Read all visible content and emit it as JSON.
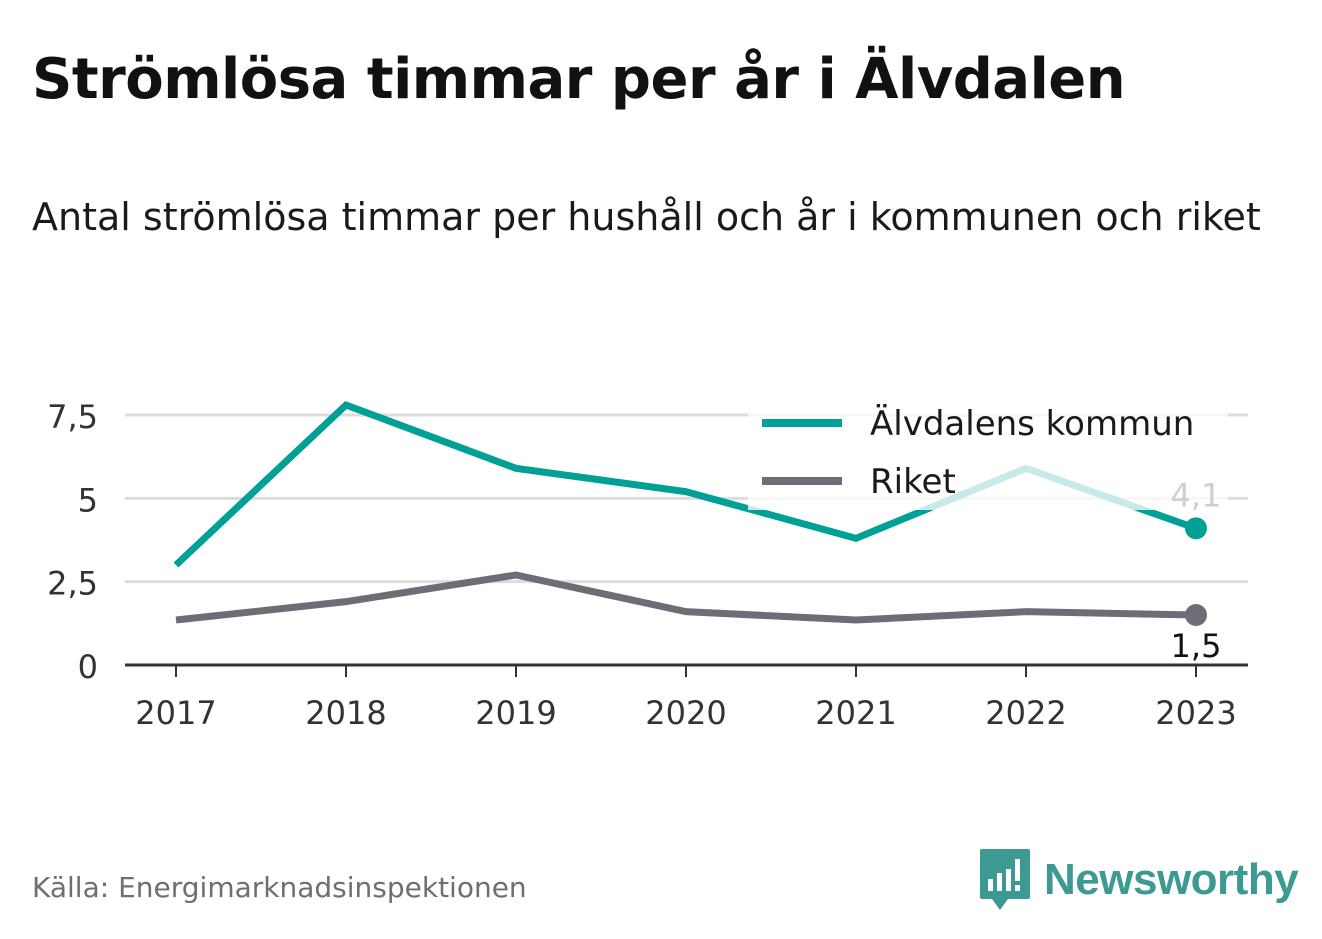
{
  "title": "Strömlösa timmar per år i Älvdalen",
  "subtitle": "Antal strömlösa timmar per hushåll och år i kommunen och riket",
  "source": "Källa: Energimarknadsinspektionen",
  "logo": {
    "text": "Newsworthy",
    "icon": "newsworthy-logo-icon",
    "color": "#3d9a92"
  },
  "chart_data": {
    "type": "line",
    "x": [
      "2017",
      "2018",
      "2019",
      "2020",
      "2021",
      "2022",
      "2023"
    ],
    "y_ticks": [
      "0",
      "2,5",
      "5",
      "7,5"
    ],
    "y_tick_values": [
      0,
      2.5,
      5,
      7.5
    ],
    "ylim": [
      0,
      7.5
    ],
    "grid": true,
    "legend_position": "top-right",
    "series": [
      {
        "name": "Älvdalens kommun",
        "color": "#00a096",
        "values": [
          3.0,
          7.8,
          5.9,
          5.2,
          3.8,
          5.9,
          4.1
        ],
        "end_label": "4,1"
      },
      {
        "name": "Riket",
        "color": "#6e6d75",
        "values": [
          1.35,
          1.9,
          2.7,
          1.6,
          1.35,
          1.6,
          1.5
        ],
        "end_label": "1,5"
      }
    ]
  }
}
